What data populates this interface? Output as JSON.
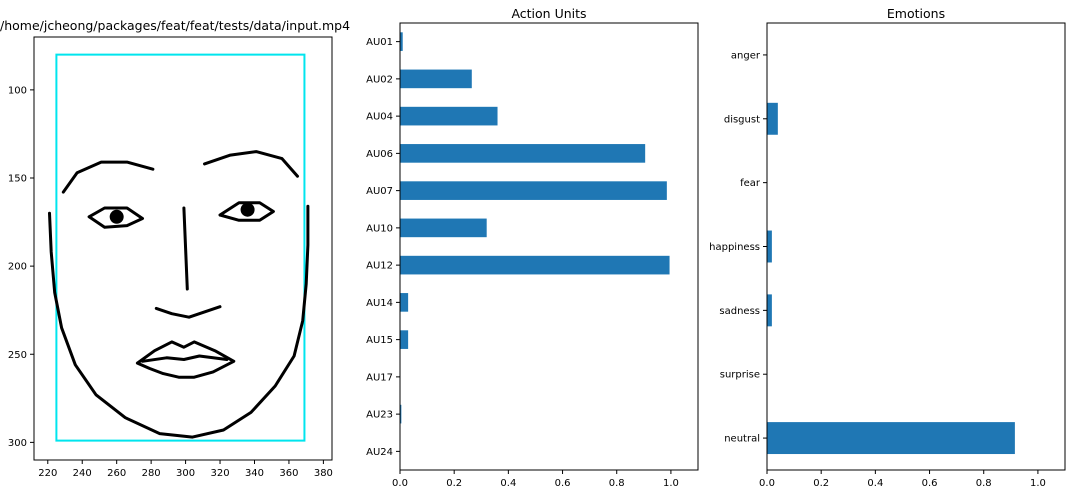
{
  "chart_data": [
    {
      "type": "scatter",
      "title": "/home/jcheong/packages/feat/feat/tests/data/input.mp4",
      "xlim": [
        212,
        385
      ],
      "ylim": [
        310,
        70
      ],
      "x_ticks": [
        220,
        240,
        260,
        280,
        300,
        320,
        340,
        360,
        380
      ],
      "y_ticks": [
        100,
        150,
        200,
        250,
        300
      ],
      "face_box": {
        "x": [
          225,
          369
        ],
        "y": [
          80,
          299
        ],
        "color": "#00e5ee"
      },
      "face_lines": [
        {
          "name": "jaw",
          "points": [
            [
              221,
              170
            ],
            [
              222,
              192
            ],
            [
              224,
              215
            ],
            [
              228,
              235
            ],
            [
              236,
              256
            ],
            [
              248,
              273
            ],
            [
              265,
              286
            ],
            [
              285,
              295
            ],
            [
              304,
              297
            ],
            [
              322,
              293
            ],
            [
              338,
              283
            ],
            [
              352,
              268
            ],
            [
              363,
              251
            ],
            [
              368,
              231
            ],
            [
              370,
              210
            ],
            [
              371,
              188
            ],
            [
              371,
              166
            ]
          ]
        },
        {
          "name": "left-brow",
          "points": [
            [
              229,
              158
            ],
            [
              237,
              147
            ],
            [
              251,
              141
            ],
            [
              266,
              141
            ],
            [
              281,
              145
            ]
          ]
        },
        {
          "name": "right-brow",
          "points": [
            [
              311,
              142
            ],
            [
              326,
              137
            ],
            [
              341,
              135
            ],
            [
              356,
              139
            ],
            [
              365,
              149
            ]
          ]
        },
        {
          "name": "nose",
          "points": [
            [
              299,
              167
            ],
            [
              300,
              190
            ],
            [
              301,
              213
            ]
          ]
        },
        {
          "name": "nose-base",
          "points": [
            [
              283,
              224
            ],
            [
              292,
              227
            ],
            [
              302,
              229
            ],
            [
              311,
              226
            ],
            [
              320,
              223
            ]
          ]
        },
        {
          "name": "left-eye",
          "points": [
            [
              244,
              172
            ],
            [
              253,
              167
            ],
            [
              266,
              167
            ],
            [
              275,
              173
            ],
            [
              266,
              177
            ],
            [
              253,
              178
            ],
            [
              244,
              172
            ]
          ],
          "pupil": [
            260,
            172
          ]
        },
        {
          "name": "right-eye",
          "points": [
            [
              320,
              171
            ],
            [
              331,
              164
            ],
            [
              343,
              164
            ],
            [
              351,
              169
            ],
            [
              343,
              174
            ],
            [
              331,
              174
            ],
            [
              320,
              171
            ]
          ],
          "pupil": [
            336,
            168
          ]
        },
        {
          "name": "outer-lip",
          "points": [
            [
              272,
              255
            ],
            [
              282,
              248
            ],
            [
              292,
              243
            ],
            [
              299,
              246
            ],
            [
              305,
              243
            ],
            [
              317,
              248
            ],
            [
              328,
              254
            ],
            [
              316,
              260
            ],
            [
              305,
              263
            ],
            [
              296,
              263
            ],
            [
              287,
              261
            ],
            [
              279,
              258
            ],
            [
              272,
              255
            ]
          ]
        },
        {
          "name": "inner-lip",
          "points": [
            [
              275,
              254
            ],
            [
              289,
              252
            ],
            [
              299,
              253
            ],
            [
              308,
              251
            ],
            [
              324,
              253
            ]
          ]
        }
      ]
    },
    {
      "type": "bar",
      "title": "Action Units",
      "categories": [
        "AU01",
        "AU02",
        "AU04",
        "AU06",
        "AU07",
        "AU10",
        "AU12",
        "AU14",
        "AU15",
        "AU17",
        "AU23",
        "AU24"
      ],
      "values": [
        0.01,
        0.265,
        0.36,
        0.905,
        0.985,
        0.32,
        0.995,
        0.03,
        0.03,
        0.0,
        0.005,
        0.0
      ],
      "xlim": [
        0,
        1.1
      ],
      "x_ticks": [
        "0.0",
        "0.2",
        "0.4",
        "0.6",
        "0.8",
        "1.0"
      ],
      "color": "#1f77b4"
    },
    {
      "type": "bar",
      "title": "Emotions",
      "categories": [
        "anger",
        "disgust",
        "fear",
        "happiness",
        "sadness",
        "surprise",
        "neutral"
      ],
      "values": [
        0.0,
        0.04,
        0.0,
        0.018,
        0.018,
        0.0,
        0.915
      ],
      "xlim": [
        0,
        1.1
      ],
      "x_ticks": [
        "0.0",
        "0.2",
        "0.4",
        "0.6",
        "0.8",
        "1.0"
      ],
      "color": "#1f77b4"
    }
  ]
}
